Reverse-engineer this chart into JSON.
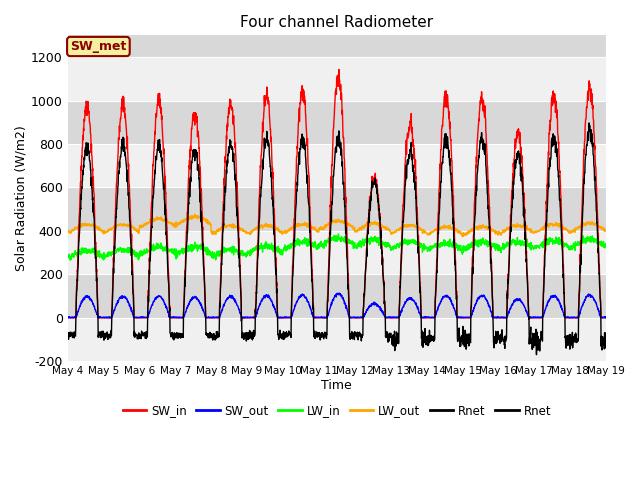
{
  "title": "Four channel Radiometer",
  "xlabel": "Time",
  "ylabel": "Solar Radiation (W/m2)",
  "ylim": [
    -200,
    1300
  ],
  "xlim": [
    0,
    15
  ],
  "annotation": "SW_met",
  "background_color": "#ffffff",
  "plot_bg_color": "#e8e8e8",
  "band_color_light": "#f0f0f0",
  "band_color_dark": "#d8d8d8",
  "x_tick_labels": [
    "May 4",
    "May 5",
    "May 6",
    "May 7",
    "May 8",
    "May 9",
    "May 10",
    "May 11",
    "May 12",
    "May 13",
    "May 14",
    "May 15",
    "May 16",
    "May 17",
    "May 18",
    "May 19"
  ],
  "legend_labels": [
    "SW_in",
    "SW_out",
    "LW_in",
    "LW_out",
    "Rnet",
    "Rnet"
  ],
  "legend_colors": [
    "red",
    "blue",
    "green",
    "orange",
    "black",
    "black"
  ],
  "sw_in_peaks": [
    980,
    980,
    1000,
    940,
    980,
    1020,
    1040,
    1110,
    650,
    900,
    1020,
    1010,
    850,
    1020,
    1050
  ],
  "rnet_peaks": [
    790,
    795,
    790,
    770,
    795,
    820,
    820,
    830,
    630,
    770,
    825,
    825,
    750,
    825,
    860
  ],
  "lw_in_bases": [
    280,
    285,
    295,
    295,
    285,
    300,
    320,
    335,
    330,
    320,
    315,
    320,
    320,
    325,
    330
  ],
  "lw_out_bases": [
    395,
    395,
    420,
    430,
    390,
    390,
    395,
    410,
    400,
    390,
    385,
    385,
    390,
    395,
    400
  ],
  "days": 15,
  "pts_per_day": 144
}
